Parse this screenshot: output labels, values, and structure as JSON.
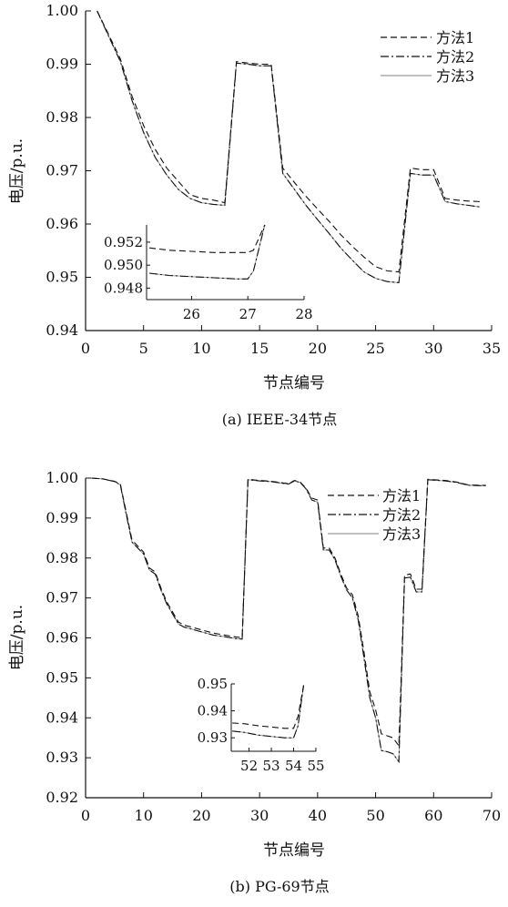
{
  "chart_data": [
    {
      "type": "line",
      "caption": "(a) IEEE-34节点",
      "xlabel": "节点编号",
      "ylabel": "电压/p.u.",
      "xlim": [
        0,
        35
      ],
      "ylim": [
        0.94,
        1.0
      ],
      "xticks": [
        0,
        5,
        10,
        15,
        20,
        25,
        30,
        35
      ],
      "yticks": [
        0.94,
        0.95,
        0.96,
        0.97,
        0.98,
        0.99,
        1.0
      ],
      "ytick_labels": [
        "0.94",
        "0.95",
        "0.96",
        "0.97",
        "0.98",
        "0.99",
        "1.00"
      ],
      "grid": false,
      "legend_position": "top-right",
      "x": [
        1,
        2,
        3,
        4,
        5,
        6,
        7,
        8,
        9,
        10,
        11,
        12,
        13,
        14,
        15,
        16,
        17,
        18,
        19,
        20,
        21,
        22,
        23,
        24,
        25,
        26,
        27,
        28,
        29,
        30,
        31,
        32,
        33,
        34
      ],
      "series": [
        {
          "name": "方法1",
          "style": "dashed",
          "values": [
            1.0,
            0.9955,
            0.991,
            0.984,
            0.9785,
            0.974,
            0.9705,
            0.968,
            0.9655,
            0.9648,
            0.9645,
            0.964,
            0.9905,
            0.9902,
            0.99,
            0.99,
            0.9705,
            0.9678,
            0.9652,
            0.9628,
            0.9605,
            0.958,
            0.9558,
            0.9538,
            0.952,
            0.9512,
            0.951,
            0.9705,
            0.9702,
            0.9702,
            0.9648,
            0.9645,
            0.9643,
            0.9642
          ]
        },
        {
          "name": "方法2",
          "style": "dashdot",
          "values": [
            1.0,
            0.9952,
            0.9905,
            0.9832,
            0.9772,
            0.9725,
            0.9692,
            0.9665,
            0.9648,
            0.964,
            0.9637,
            0.9635,
            0.9902,
            0.99,
            0.9897,
            0.9897,
            0.9695,
            0.9665,
            0.9635,
            0.9608,
            0.9582,
            0.9555,
            0.9532,
            0.951,
            0.9498,
            0.9492,
            0.949,
            0.9695,
            0.9692,
            0.9692,
            0.9642,
            0.9638,
            0.9635,
            0.9632
          ]
        },
        {
          "name": "方法3",
          "style": "solid",
          "values": [
            1.0,
            0.9952,
            0.9905,
            0.9832,
            0.9772,
            0.9725,
            0.9692,
            0.9665,
            0.9648,
            0.964,
            0.9637,
            0.9635,
            0.9902,
            0.99,
            0.9897,
            0.9897,
            0.9695,
            0.9665,
            0.9635,
            0.9608,
            0.9582,
            0.9555,
            0.9532,
            0.951,
            0.9498,
            0.9492,
            0.949,
            0.9695,
            0.9692,
            0.9692,
            0.9642,
            0.9638,
            0.9635,
            0.9632
          ]
        }
      ],
      "inset": {
        "xlim": [
          25.2,
          28
        ],
        "ylim": [
          0.947,
          0.9535
        ],
        "xticks": [
          26,
          27,
          28
        ],
        "yticks": [
          0.948,
          0.95,
          0.952
        ],
        "ytick_labels": [
          "0.948",
          "0.950",
          "0.952"
        ],
        "x": [
          25.25,
          25.6,
          26,
          26.4,
          26.8,
          27.0,
          27.1,
          27.3
        ],
        "series": [
          {
            "name": "方法1",
            "style": "dashed",
            "values": [
              0.9515,
              0.9513,
              0.9512,
              0.9511,
              0.9511,
              0.9511,
              0.9513,
              0.9535
            ]
          },
          {
            "name": "方法2",
            "style": "dashdot",
            "values": [
              0.9493,
              0.9491,
              0.949,
              0.9489,
              0.9488,
              0.9488,
              0.9495,
              0.9535
            ]
          },
          {
            "name": "方法3",
            "style": "solid",
            "values": [
              0.9493,
              0.9491,
              0.949,
              0.9489,
              0.9488,
              0.9488,
              0.9495,
              0.9535
            ]
          }
        ]
      }
    },
    {
      "type": "line",
      "caption": "(b) PG-69节点",
      "xlabel": "节点编号",
      "ylabel": "电压/p.u.",
      "xlim": [
        0,
        70
      ],
      "ylim": [
        0.92,
        1.0
      ],
      "xticks": [
        0,
        10,
        20,
        30,
        40,
        50,
        60,
        70
      ],
      "yticks": [
        0.92,
        0.93,
        0.94,
        0.95,
        0.96,
        0.97,
        0.98,
        0.99,
        1.0
      ],
      "ytick_labels": [
        "0.92",
        "0.93",
        "0.94",
        "0.95",
        "0.96",
        "0.97",
        "0.98",
        "0.99",
        "1.00"
      ],
      "grid": false,
      "legend_position": "top-right",
      "x": [
        1,
        3,
        5,
        6,
        7,
        8,
        9,
        10,
        11,
        12,
        13,
        14,
        15,
        16,
        17,
        18,
        20,
        22,
        24,
        26,
        27,
        28,
        30,
        32,
        34,
        35,
        36,
        37,
        38,
        39,
        40,
        41,
        42,
        43,
        44,
        45,
        46,
        47,
        48,
        49,
        50,
        51,
        52,
        53,
        54,
        55,
        56,
        57,
        58,
        59,
        60,
        62,
        64,
        66,
        68,
        69
      ],
      "series": [
        {
          "name": "方法1",
          "style": "dashed",
          "values": [
            1.0,
            0.9998,
            0.9992,
            0.9985,
            0.9915,
            0.9845,
            0.983,
            0.9815,
            0.9775,
            0.9765,
            0.9725,
            0.969,
            0.9665,
            0.964,
            0.9632,
            0.9628,
            0.962,
            0.9612,
            0.9607,
            0.9602,
            0.9601,
            0.9997,
            0.9994,
            0.9992,
            0.9988,
            0.9986,
            0.9994,
            0.999,
            0.9975,
            0.995,
            0.9945,
            0.9825,
            0.9825,
            0.98,
            0.976,
            0.9725,
            0.9708,
            0.9655,
            0.9565,
            0.9465,
            0.942,
            0.936,
            0.9355,
            0.935,
            0.933,
            0.9757,
            0.976,
            0.9722,
            0.9722,
            0.9997,
            0.9996,
            0.9994,
            0.999,
            0.9983,
            0.9982,
            0.9982
          ]
        },
        {
          "name": "方法2",
          "style": "dashdot",
          "values": [
            1.0,
            0.9998,
            0.9991,
            0.9983,
            0.991,
            0.984,
            0.9825,
            0.981,
            0.977,
            0.976,
            0.972,
            0.9685,
            0.966,
            0.9635,
            0.9627,
            0.9623,
            0.9615,
            0.9607,
            0.9603,
            0.9598,
            0.9597,
            0.9996,
            0.9993,
            0.9991,
            0.9987,
            0.9985,
            0.9993,
            0.9989,
            0.9973,
            0.9945,
            0.994,
            0.982,
            0.982,
            0.9795,
            0.9755,
            0.972,
            0.97,
            0.9645,
            0.955,
            0.945,
            0.94,
            0.9318,
            0.9315,
            0.931,
            0.929,
            0.975,
            0.9752,
            0.9715,
            0.9715,
            0.9996,
            0.9995,
            0.9993,
            0.9989,
            0.9982,
            0.9981,
            0.9981
          ]
        },
        {
          "name": "方法3",
          "style": "solid",
          "values": [
            1.0,
            0.9998,
            0.9991,
            0.9983,
            0.991,
            0.984,
            0.9825,
            0.981,
            0.977,
            0.976,
            0.972,
            0.9685,
            0.966,
            0.9635,
            0.9627,
            0.9623,
            0.9615,
            0.9607,
            0.9603,
            0.9598,
            0.9597,
            0.9996,
            0.9993,
            0.9991,
            0.9987,
            0.9985,
            0.9993,
            0.9989,
            0.9973,
            0.9945,
            0.994,
            0.982,
            0.982,
            0.9795,
            0.9755,
            0.972,
            0.97,
            0.9645,
            0.955,
            0.945,
            0.94,
            0.9318,
            0.9315,
            0.931,
            0.929,
            0.975,
            0.9752,
            0.9715,
            0.9715,
            0.9996,
            0.9995,
            0.9993,
            0.9989,
            0.9982,
            0.9981,
            0.9981
          ]
        }
      ],
      "inset": {
        "xlim": [
          51.2,
          55
        ],
        "ylim": [
          0.925,
          0.95
        ],
        "xticks": [
          52,
          53,
          54,
          55
        ],
        "yticks": [
          0.93,
          0.94,
          0.95
        ],
        "ytick_labels": [
          "0.93",
          "0.94",
          "0.95"
        ],
        "x": [
          51.25,
          51.8,
          52.4,
          53,
          53.6,
          54.0,
          54.2,
          54.45
        ],
        "series": [
          {
            "name": "方法1",
            "style": "dashed",
            "values": [
              0.9355,
              0.9352,
              0.9345,
              0.934,
              0.9335,
              0.9335,
              0.938,
              0.9495
            ]
          },
          {
            "name": "方法2",
            "style": "dashdot",
            "values": [
              0.9325,
              0.932,
              0.931,
              0.9305,
              0.93,
              0.93,
              0.9345,
              0.9495
            ]
          },
          {
            "name": "方法3",
            "style": "solid",
            "values": [
              0.9325,
              0.932,
              0.931,
              0.9305,
              0.93,
              0.93,
              0.9345,
              0.9495
            ]
          }
        ]
      }
    }
  ]
}
